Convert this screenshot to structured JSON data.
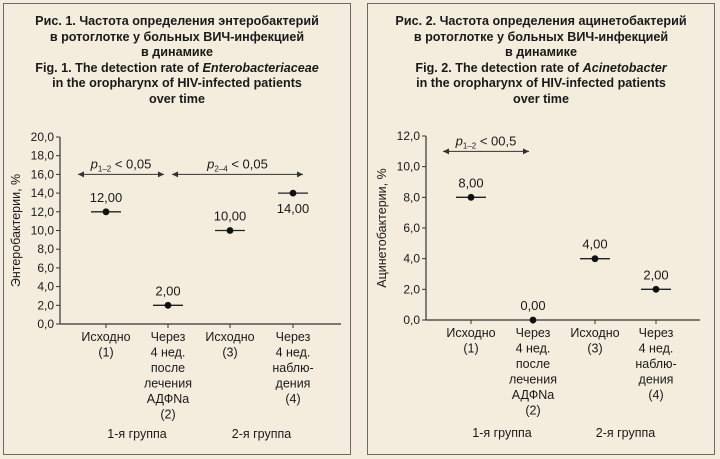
{
  "chart_data": [
    {
      "type": "scatter",
      "title_ru": [
        "Рис. 1. Частота определения энтеробактерий",
        "в ротоглотке у больных ВИЧ-инфекцией",
        "в динамике"
      ],
      "title_en_prefix": "Fig. 1. The detection rate of ",
      "title_en_italic": "Enterobacteriaceae",
      "title_en_rest": [
        "in the oropharynx of HIV-infected patients",
        "over time"
      ],
      "ylabel": "Энтеробактерии, %",
      "ylim": [
        0,
        20
      ],
      "yticks": [
        "0,0",
        "2,0",
        "4,0",
        "6,0",
        "8,0",
        "10,0",
        "12,0",
        "14,0",
        "16,0",
        "18,0",
        "20,0"
      ],
      "categories": [
        [
          "Исходно",
          "(1)"
        ],
        [
          "Через",
          "4 нед.",
          "после",
          "лечения",
          "АДФNa",
          "(2)"
        ],
        [
          "Исходно",
          "(3)"
        ],
        [
          "Через",
          "4 нед.",
          "наблю-",
          "дения",
          "(4)"
        ]
      ],
      "values": [
        12,
        2,
        10,
        14
      ],
      "value_labels": [
        "12,00",
        "2,00",
        "10,00",
        "14,00"
      ],
      "groups": [
        "1-я группа",
        "2-я группа"
      ],
      "annotations": [
        {
          "p": "p",
          "sub": "1–2",
          "text": " < 0,05",
          "from": 1,
          "to": 2,
          "y": 16
        },
        {
          "p": "p",
          "sub": "2–4",
          "text": " < 0,05",
          "from": 2,
          "to": 4,
          "y": 16
        }
      ]
    },
    {
      "type": "scatter",
      "title_ru": [
        "Рис. 2. Частота определения ацинетобактерий",
        "в ротоглотке у больных ВИЧ-инфекцией",
        "в динамике"
      ],
      "title_en_prefix": "Fig. 2. The detection rate of ",
      "title_en_italic": "Acinetobacter",
      "title_en_rest": [
        "in the oropharynx of HIV-infected patients",
        "over time"
      ],
      "ylabel": "Ацинетобактерии, %",
      "ylim": [
        0,
        12
      ],
      "yticks": [
        "0,0",
        "2,0",
        "4,0",
        "6,0",
        "8,0",
        "10,0",
        "12,0"
      ],
      "categories": [
        [
          "Исходно",
          "(1)"
        ],
        [
          "Через",
          "4 нед.",
          "после",
          "лечения",
          "АДФNa",
          "(2)"
        ],
        [
          "Исходно",
          "(3)"
        ],
        [
          "Через",
          "4 нед.",
          "наблю-",
          "дения",
          "(4)"
        ]
      ],
      "values": [
        8,
        0,
        4,
        2
      ],
      "value_labels": [
        "8,00",
        "0,00",
        "4,00",
        "2,00"
      ],
      "groups": [
        "1-я группа",
        "2-я группа"
      ],
      "annotations": [
        {
          "p": "p",
          "sub": "1–2",
          "text": " < 00,5",
          "from": 1,
          "to": 2,
          "y": 11
        }
      ]
    }
  ]
}
